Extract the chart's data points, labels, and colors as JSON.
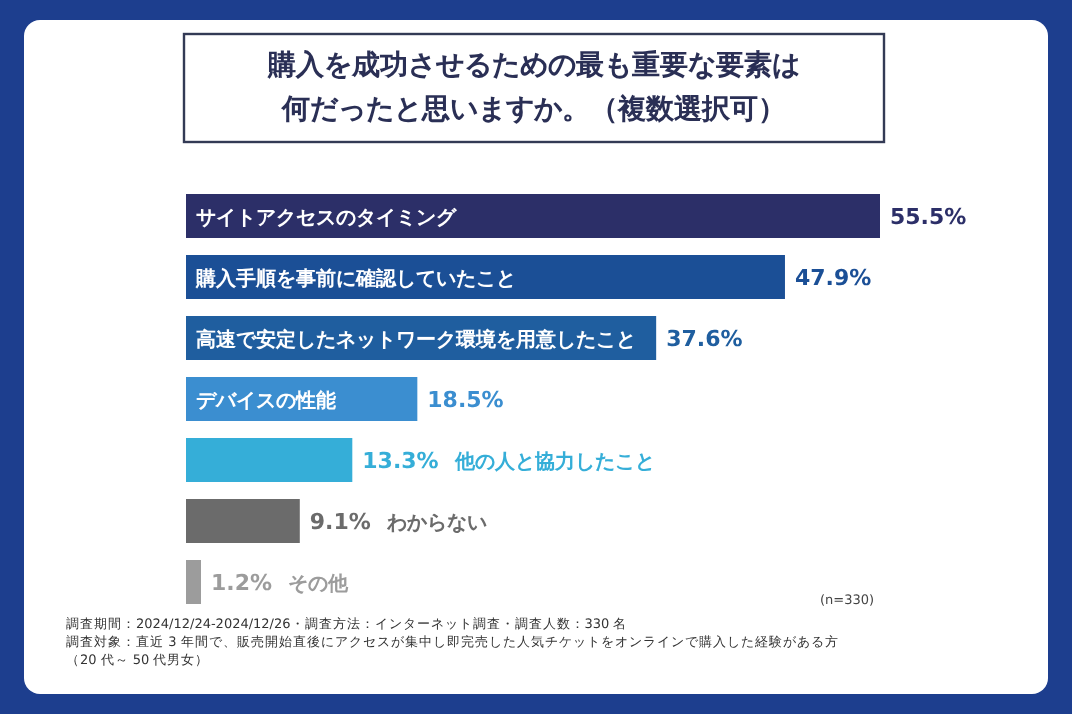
{
  "chart_data": {
    "type": "bar",
    "orientation": "horizontal",
    "title": "購入を成功させるための最も重要な要素は何だったと思いますか。（複数選択可）",
    "categories": [
      "サイトアクセスのタイミング",
      "購入手順を事前に確認していたこと",
      "高速で安定したネットワーク環境を用意したこと",
      "デバイスの性能",
      "他の人と協力したこと",
      "わからない",
      "その他"
    ],
    "values": [
      55.5,
      47.9,
      37.6,
      18.5,
      13.3,
      9.1,
      1.2
    ],
    "value_labels": [
      "55.5%",
      "47.9%",
      "37.6%",
      "18.5%",
      "13.3%",
      "9.1%",
      "1.2%"
    ],
    "colors": [
      "#2c2f68",
      "#1b4f96",
      "#1f5e9f",
      "#3b8ed0",
      "#35aed8",
      "#6b6b6b",
      "#9c9c9c"
    ],
    "annotations": [
      "(n=330)",
      "調査期間：2024/12/24-2024/12/26・調査方法：インターネット調査・調査人数：330 名",
      "調査対象：直近 3 年間で、販売開始直後にアクセスが集中し即完売した人気チケットをオンラインで購入した経験がある方（20 代～ 50 代男女）"
    ]
  }
}
